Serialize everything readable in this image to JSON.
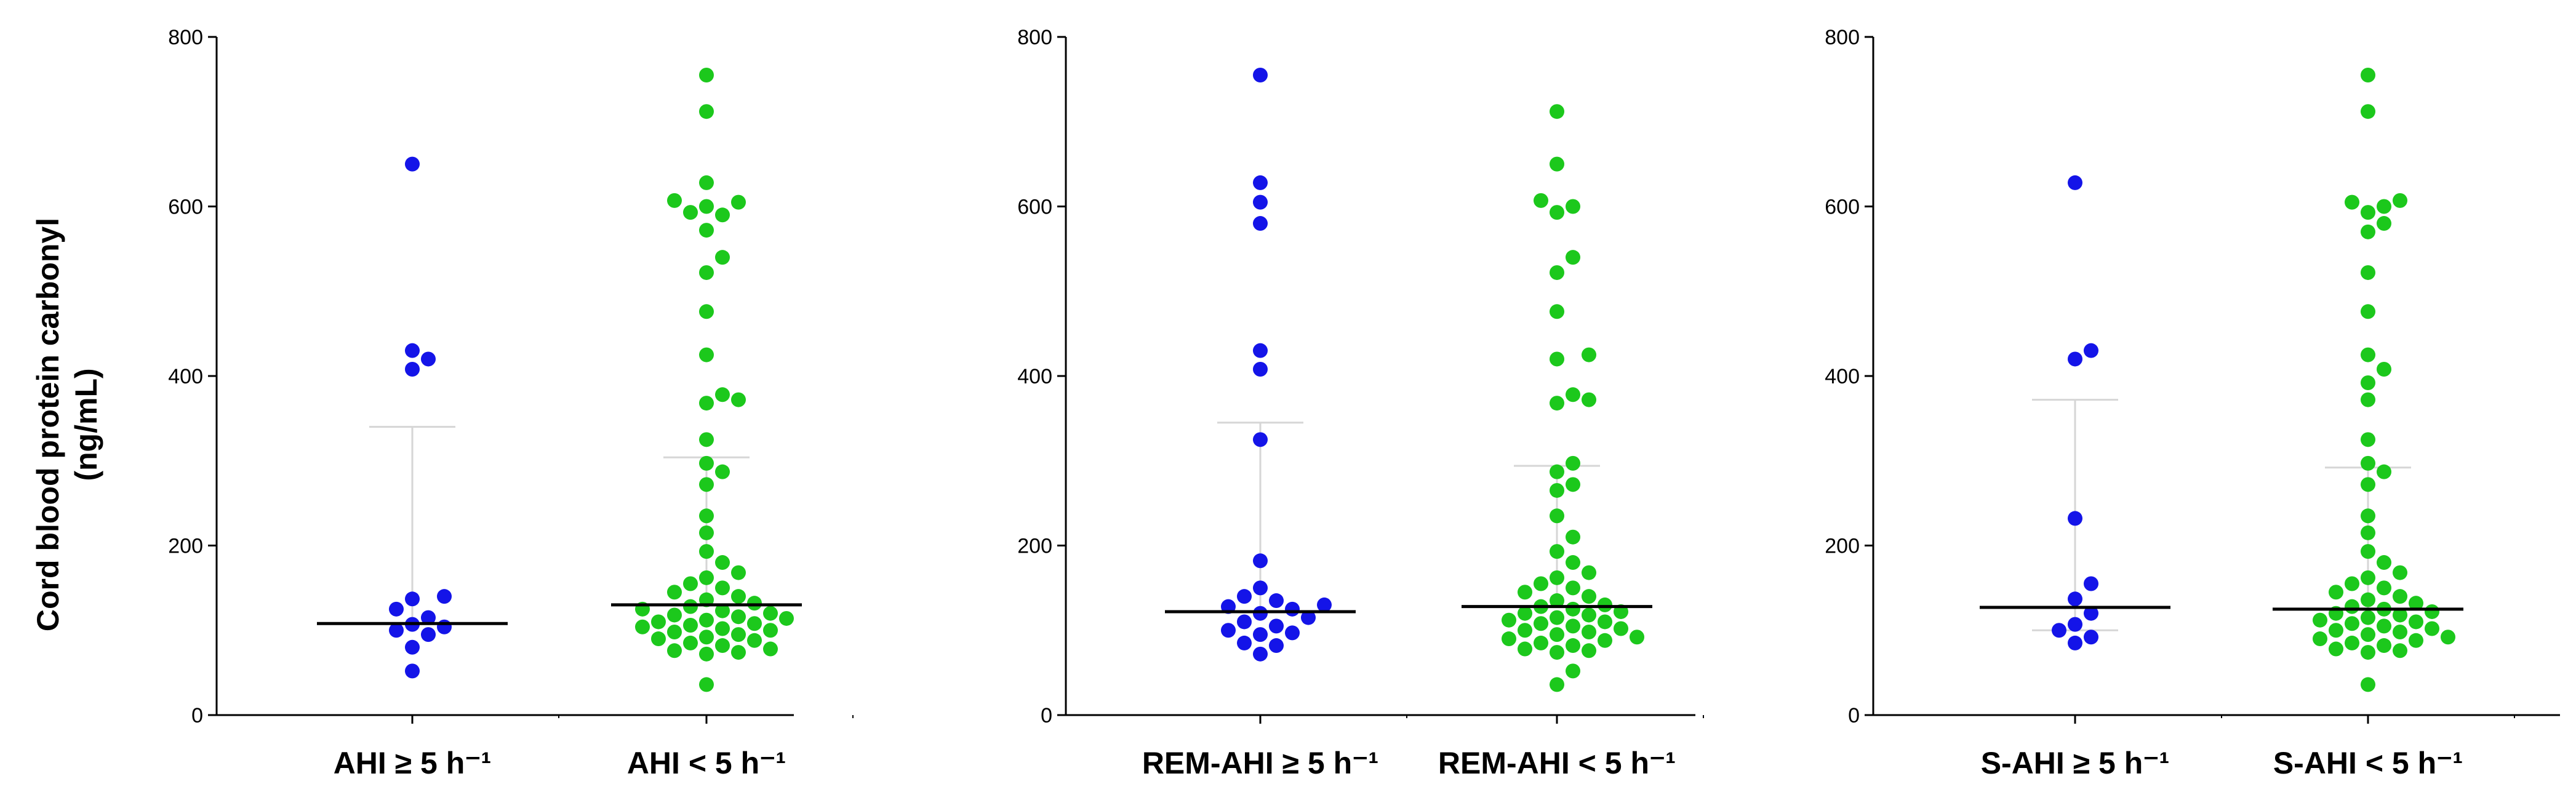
{
  "colors": {
    "group1": "#1414e8",
    "group2": "#1cc81c",
    "median": "#000000",
    "error_bar": "#d6d6d6",
    "axis": "#000000"
  },
  "y_axis_title": {
    "line1": "Cord blood protein carbonyl",
    "line2": "(ng/mL)"
  },
  "chart_data": [
    {
      "type": "scatter",
      "categories": [
        "AHI ≥ 5 h⁻¹",
        "AHI < 5 h⁻¹"
      ],
      "ylim": [
        0,
        800
      ],
      "yticks": [
        "0",
        "200",
        "400",
        "600",
        "800"
      ],
      "series": [
        {
          "values": [
            650,
            430,
            420,
            408,
            140,
            137,
            125,
            115,
            107,
            104,
            100,
            95,
            80,
            52
          ],
          "median": 108,
          "error_upper": 340,
          "error_lower": 108
        },
        {
          "values": [
            755,
            712,
            628,
            607,
            605,
            600,
            593,
            590,
            572,
            540,
            522,
            476,
            425,
            378,
            372,
            368,
            325,
            297,
            287,
            272,
            235,
            215,
            193,
            180,
            168,
            162,
            155,
            150,
            145,
            140,
            136,
            132,
            128,
            125,
            123,
            120,
            118,
            116,
            114,
            112,
            110,
            108,
            106,
            104,
            102,
            100,
            98,
            95,
            92,
            90,
            88,
            85,
            82,
            78,
            76,
            74,
            72,
            36
          ],
          "median": 130,
          "error_upper": 304,
          "error_lower": 130
        }
      ]
    },
    {
      "type": "scatter",
      "categories": [
        "REM-AHI ≥ 5 h⁻¹",
        "REM-AHI < 5 h⁻¹"
      ],
      "ylim": [
        0,
        800
      ],
      "yticks": [
        "0",
        "200",
        "400",
        "600",
        "800"
      ],
      "series": [
        {
          "values": [
            755,
            628,
            605,
            580,
            430,
            408,
            325,
            182,
            150,
            140,
            135,
            130,
            128,
            125,
            120,
            115,
            110,
            105,
            100,
            97,
            95,
            85,
            82,
            72
          ],
          "median": 122,
          "error_upper": 345,
          "error_lower": 122
        },
        {
          "values": [
            712,
            650,
            607,
            600,
            593,
            540,
            522,
            476,
            425,
            420,
            378,
            372,
            368,
            297,
            287,
            272,
            265,
            235,
            210,
            193,
            180,
            168,
            162,
            155,
            150,
            145,
            140,
            135,
            130,
            128,
            125,
            122,
            120,
            118,
            115,
            112,
            110,
            108,
            105,
            102,
            100,
            98,
            95,
            92,
            90,
            88,
            85,
            82,
            78,
            76,
            74,
            52,
            36
          ],
          "median": 128,
          "error_upper": 294,
          "error_lower": 128
        }
      ]
    },
    {
      "type": "scatter",
      "categories": [
        "S-AHI ≥ 5 h⁻¹",
        "S-AHI < 5 h⁻¹"
      ],
      "ylim": [
        0,
        800
      ],
      "yticks": [
        "0",
        "200",
        "400",
        "600",
        "800"
      ],
      "series": [
        {
          "values": [
            628,
            430,
            420,
            232,
            155,
            137,
            120,
            107,
            100,
            92,
            85
          ],
          "median": 127,
          "error_upper": 372,
          "error_lower": 100
        },
        {
          "values": [
            755,
            712,
            607,
            605,
            600,
            593,
            580,
            570,
            522,
            476,
            425,
            408,
            392,
            372,
            325,
            297,
            287,
            272,
            235,
            215,
            193,
            180,
            168,
            162,
            155,
            150,
            145,
            140,
            136,
            132,
            128,
            125,
            122,
            120,
            118,
            115,
            112,
            110,
            108,
            105,
            102,
            100,
            98,
            95,
            92,
            90,
            88,
            85,
            82,
            78,
            76,
            74,
            36
          ],
          "median": 125,
          "error_upper": 292,
          "error_lower": 125
        }
      ]
    }
  ]
}
